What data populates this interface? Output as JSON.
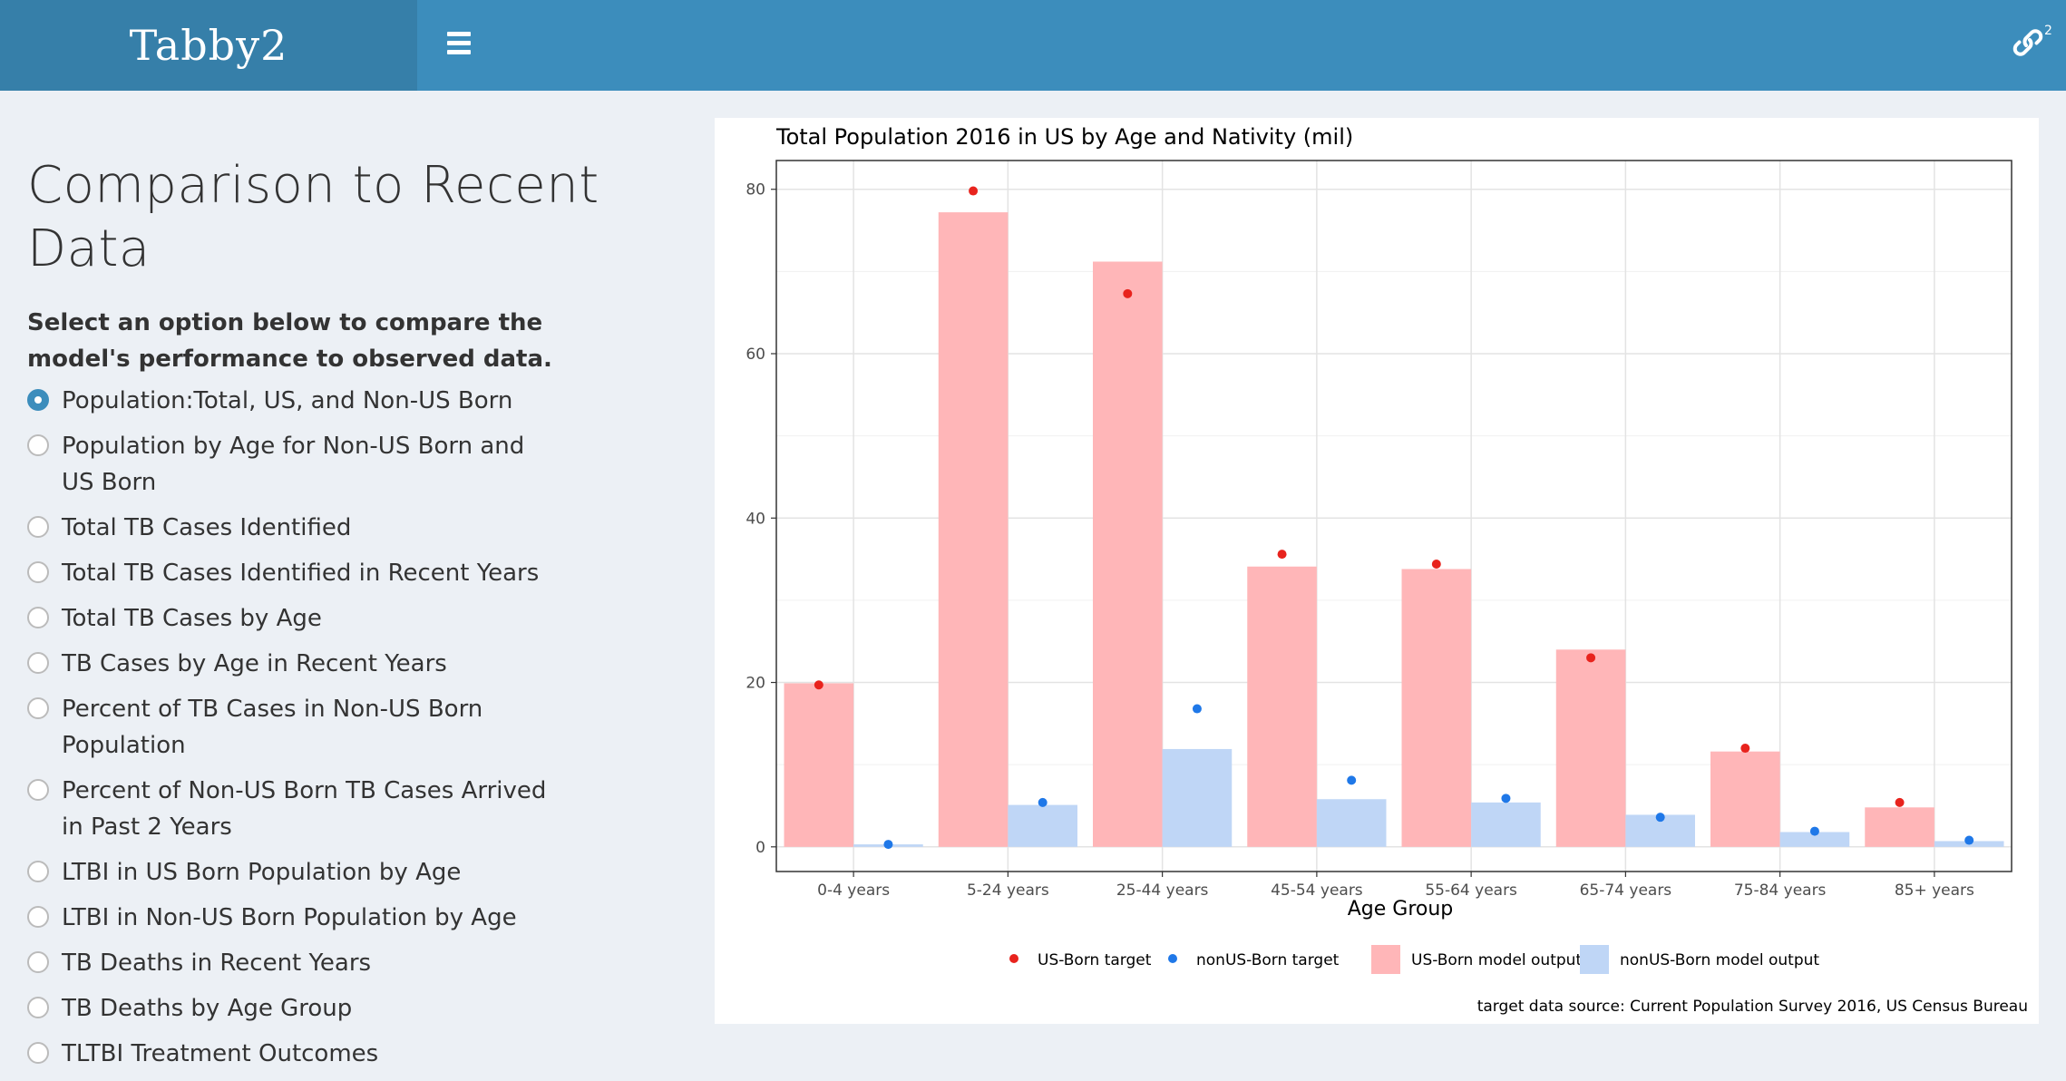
{
  "header": {
    "brand": "Tabby2",
    "menu_icon": "hamburger-icon",
    "link_icon": "link-icon",
    "link_badge": "2",
    "bar_color": "#3c8dbc",
    "brand_color": "#367fa9"
  },
  "main": {
    "title": "Comparison to Recent Data",
    "instructions": "Select an option below to compare the model's performance to observed data.",
    "options": [
      {
        "label": "Population:Total, US, and Non-US Born",
        "selected": true
      },
      {
        "label": "Population by Age for Non-US Born and US Born",
        "selected": false
      },
      {
        "label": "Total TB Cases Identified",
        "selected": false
      },
      {
        "label": "Total TB Cases Identified in Recent Years",
        "selected": false
      },
      {
        "label": "Total TB Cases by Age",
        "selected": false
      },
      {
        "label": "TB Cases by Age in Recent Years",
        "selected": false
      },
      {
        "label": "Percent of TB Cases in Non-US Born Population",
        "selected": false
      },
      {
        "label": "Percent of Non-US Born TB Cases Arrived in Past 2 Years",
        "selected": false
      },
      {
        "label": "LTBI in US Born Population by Age",
        "selected": false
      },
      {
        "label": "LTBI in Non-US Born Population by Age",
        "selected": false
      },
      {
        "label": "TB Deaths in Recent Years",
        "selected": false
      },
      {
        "label": "TB Deaths by Age Group",
        "selected": false
      },
      {
        "label": "TLTBI Treatment Outcomes",
        "selected": false
      }
    ]
  },
  "chart_data": {
    "type": "bar",
    "title": "Total Population 2016 in US by Age and Nativity (mil)",
    "xlabel": "Age Group",
    "ylabel": "",
    "ylim": [
      -3,
      83.5
    ],
    "yticks": [
      0,
      20,
      40,
      60,
      80
    ],
    "grid": true,
    "legend_position": "bottom",
    "categories": [
      "0-4 years",
      "5-24 years",
      "25-44 years",
      "45-54 years",
      "55-64 years",
      "65-74 years",
      "75-84 years",
      "85+ years"
    ],
    "series": [
      {
        "name": "US-Born model output",
        "kind": "bar",
        "color": "#ffb6b8",
        "values": [
          19.9,
          77.2,
          71.2,
          34.1,
          33.8,
          24.0,
          11.6,
          4.8
        ]
      },
      {
        "name": "nonUS-Born model output",
        "kind": "bar",
        "color": "#bfd6f6",
        "values": [
          0.3,
          5.1,
          11.9,
          5.8,
          5.4,
          3.9,
          1.8,
          0.7
        ]
      },
      {
        "name": "US-Born target",
        "kind": "point",
        "color": "#e8231d",
        "values": [
          19.7,
          79.8,
          67.3,
          35.6,
          34.4,
          23.0,
          12.0,
          5.4
        ]
      },
      {
        "name": "nonUS-Born target",
        "kind": "point",
        "color": "#1f78e8",
        "values": [
          0.3,
          5.4,
          16.8,
          8.1,
          5.9,
          3.6,
          1.9,
          0.8
        ]
      }
    ],
    "caption": "target data source: Current Population Survey 2016, US Census Bureau"
  }
}
